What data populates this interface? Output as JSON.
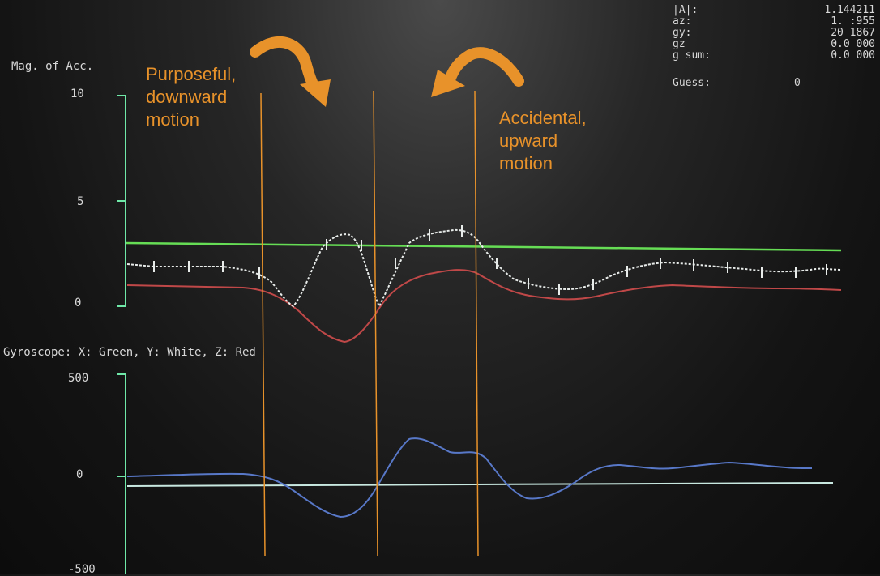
{
  "readout": {
    "rows": [
      {
        "label": "|A|:",
        "value": "1.144211"
      },
      {
        "label": "az:",
        "value": "1.   :955"
      },
      {
        "label": "gy:",
        "value": "20   1867"
      },
      {
        "label": "gz",
        "value": "0.0  000"
      },
      {
        "label": "g sum:",
        "value": "0.0  000"
      }
    ],
    "guess_label": "Guess:",
    "guess_value": "0"
  },
  "acc_plot": {
    "title": "Mag. of Acc.",
    "ticks": [
      "10",
      "5",
      "0"
    ]
  },
  "gyro_plot": {
    "title": "Gyroscope: X: Green, Y: White, Z: Red",
    "ticks": [
      "500",
      "0",
      "-500"
    ]
  },
  "annotations": {
    "purposeful": [
      "Purposeful,",
      "downward",
      "motion"
    ],
    "accidental": [
      "Accidental,",
      "upward",
      "motion"
    ]
  },
  "colors": {
    "axis": "#6fe8a8",
    "green_series": "#66dd55",
    "white_series": "#e8ecea",
    "red_series": "#c04848",
    "blue_series": "#5878c8",
    "annotation": "#e8922a"
  }
}
